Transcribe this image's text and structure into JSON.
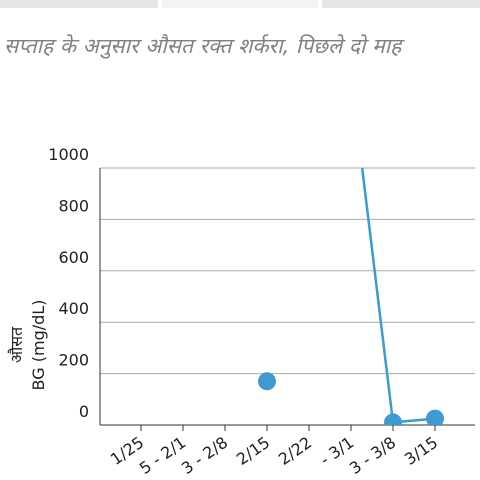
{
  "chart_data": {
    "type": "line",
    "title": "सप्ताह के अनुसार औसत रक्त शर्करा, पिछले दो माह",
    "y_label": [
      "औसत",
      "BG (mg/dL)"
    ],
    "categories": [
      "1/25",
      "5 - 2/1",
      "3 - 2/8",
      "2/15",
      "2/22",
      "- 3/1",
      "3 - 3/8",
      "3/15"
    ],
    "series": [
      {
        "color": "#3d9bd1",
        "values": [
          null,
          null,
          null,
          170,
          null,
          1360,
          10,
          25
        ]
      }
    ],
    "ylim": [
      0,
      1000
    ],
    "yticks": [
      0,
      200,
      400,
      600,
      800,
      1000
    ],
    "grid": true
  }
}
